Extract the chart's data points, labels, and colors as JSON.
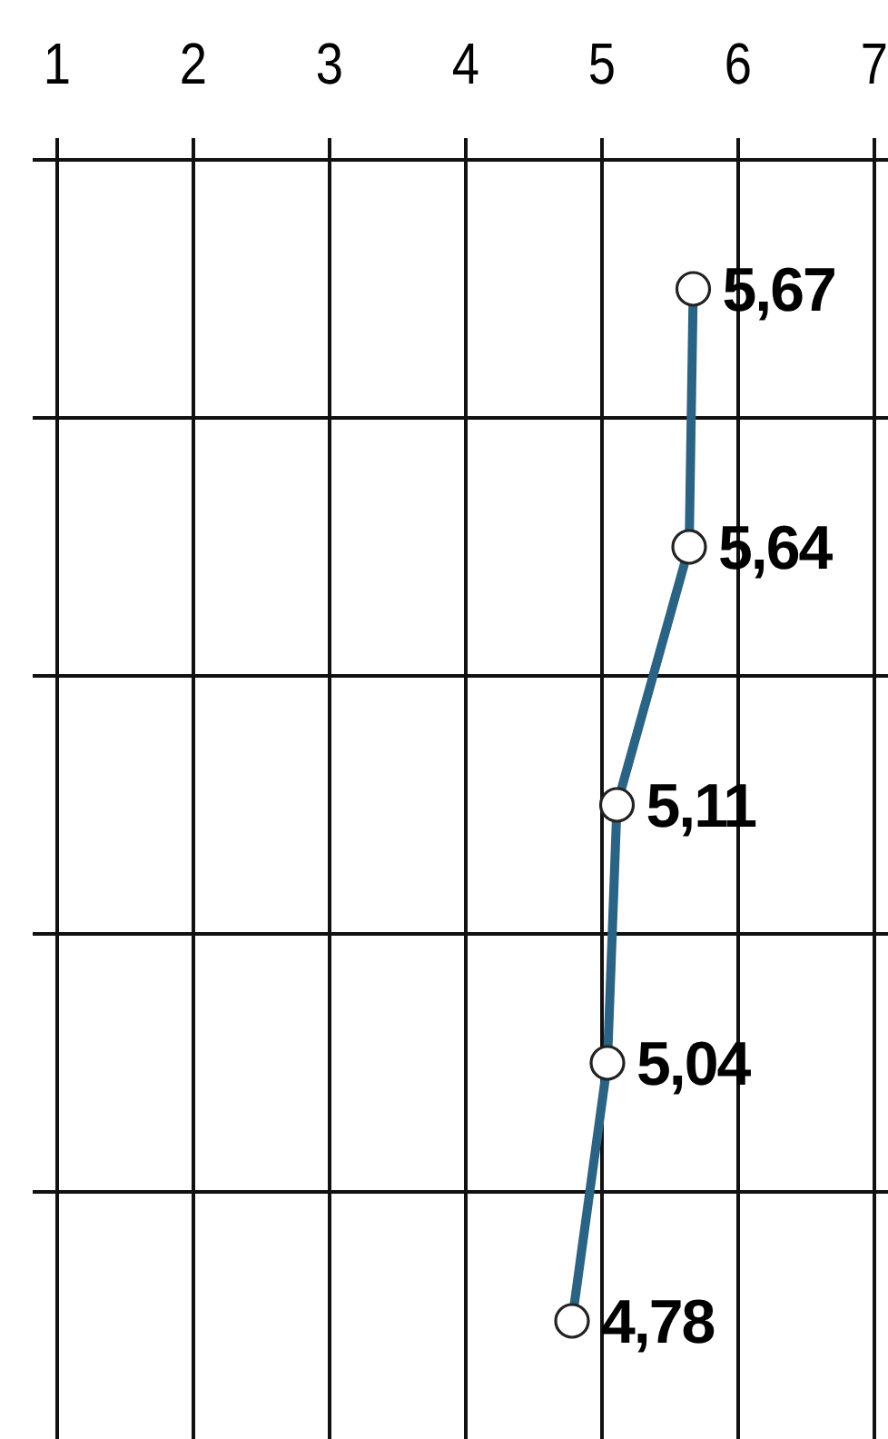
{
  "chart_data": {
    "type": "line",
    "orientation": "horizontal",
    "categories": [
      null,
      null,
      null,
      null,
      null
    ],
    "series": [
      {
        "color": "#2b6384",
        "values": [
          5.67,
          5.64,
          5.11,
          5.04,
          4.78
        ],
        "value_labels": [
          "5,67",
          "5,64",
          "5,11",
          "5,04",
          "4,78"
        ]
      }
    ],
    "xlim": [
      0.82,
      7.1
    ],
    "xticks": [
      1,
      2,
      3,
      4,
      5,
      6,
      7
    ],
    "grid": true,
    "marker": "circle",
    "line_style": "solid"
  }
}
